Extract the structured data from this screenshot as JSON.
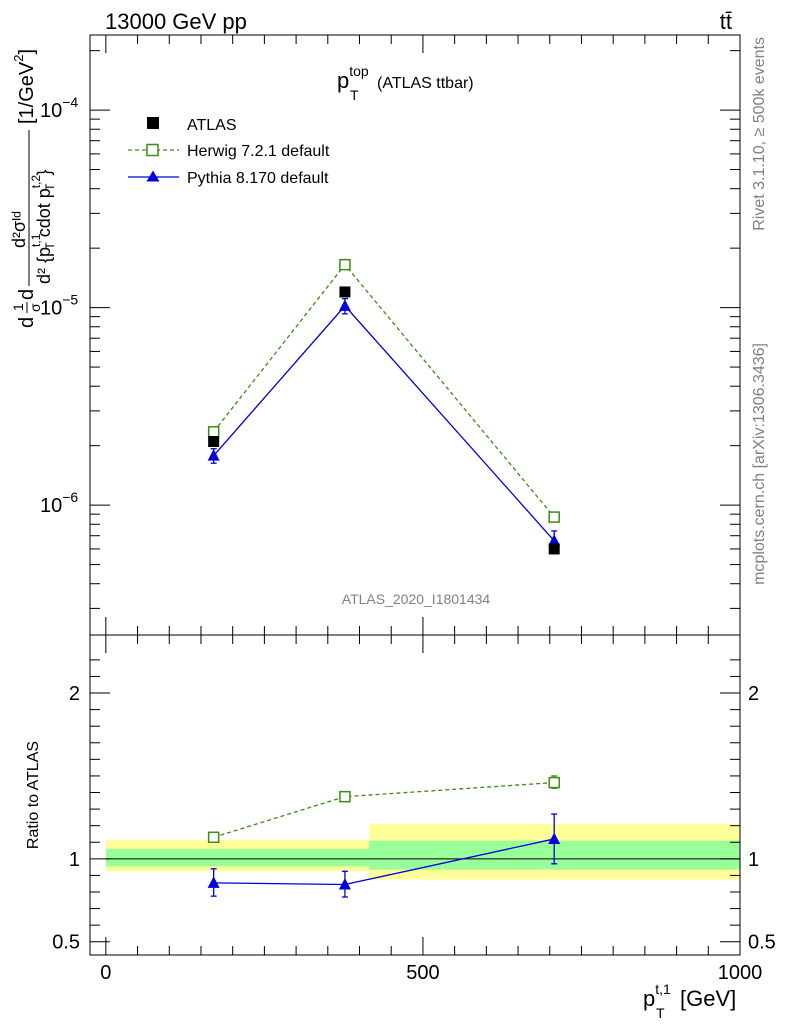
{
  "header": {
    "left": "13000 GeV pp",
    "right": "tt̄"
  },
  "side_labels": {
    "upper": "Rivet 3.1.10, ≥ 500k events",
    "lower": "mcplots.cern.ch [arXiv:1306.3436]"
  },
  "chart_data": [
    {
      "type": "scatter",
      "panel": "main",
      "title": {
        "base": "p",
        "sup": "top",
        "sub": "T",
        "suffix": "(ATLAS ttbar)"
      },
      "analysis_label": "ATLAS_2020_I1801434",
      "ylabel": {
        "lead": "d",
        "frac_num": "1",
        "frac_den": "σ",
        "d": "d",
        "num": "d²σᴵᵈ",
        "den": "d² {p",
        "den_sup1": "t,1",
        "den_sub1": "T",
        "den_mid": " cdot p",
        "den_sup2": "t,2",
        "den_sub2": "T",
        "den_end": "}",
        "unit_pre": "[1/GeV",
        "unit_sup": "2",
        "unit_post": "]"
      },
      "y_scale": "log",
      "ylim": [
        2.2e-07,
        0.00024
      ],
      "xlim": [
        -25,
        1000
      ],
      "y_ticks": [
        {
          "value": 1e-06,
          "base": "10",
          "exp": "−6"
        },
        {
          "value": 1e-05,
          "base": "10",
          "exp": "−5"
        },
        {
          "value": 0.0001,
          "base": "10",
          "exp": "−4"
        }
      ],
      "legend_position": "top-left",
      "series": [
        {
          "name": "ATLAS",
          "marker": "filled-square",
          "color": "#000000",
          "line": "none",
          "x": [
            170,
            377,
            707
          ],
          "y": [
            2.1e-06,
            1.2e-05,
            6e-07
          ]
        },
        {
          "name": "Herwig 7.2.1 default",
          "marker": "open-square",
          "color": "#3a8e10",
          "line": "dashed",
          "x": [
            170,
            377,
            707
          ],
          "y": [
            2.35e-06,
            1.65e-05,
            8.7e-07
          ]
        },
        {
          "name": "Pythia 8.170 default",
          "marker": "filled-triangle",
          "color": "#0000dd",
          "line": "solid",
          "x": [
            170,
            377,
            707
          ],
          "y": [
            1.78e-06,
            1.02e-05,
            6.6e-07
          ],
          "err_lo": [
            1.63e-06,
            9.3e-06,
            5.9e-07
          ],
          "err_hi": [
            1.93e-06,
            1.11e-05,
            7.4e-07
          ]
        }
      ]
    },
    {
      "type": "scatter",
      "panel": "ratio",
      "ylabel": "Ratio to ATLAS",
      "xlabel": {
        "base": "p",
        "sup": "t,1",
        "sub": "T",
        "unit": "[GeV]"
      },
      "xlim": [
        -25,
        1000
      ],
      "ylim": [
        0.42,
        2.35
      ],
      "y_ticks": [
        {
          "value": 0.5,
          "label": "0.5"
        },
        {
          "value": 1,
          "label": "1"
        },
        {
          "value": 2,
          "label": "2"
        }
      ],
      "x_ticks": [
        {
          "value": 0,
          "label": "0"
        },
        {
          "value": 500,
          "label": "500"
        },
        {
          "value": 1000,
          "label": "1000"
        }
      ],
      "bands": [
        {
          "x0": 0,
          "x1": 415,
          "yellow": [
            0.925,
            1.115
          ],
          "green": [
            0.955,
            1.06
          ]
        },
        {
          "x0": 415,
          "x1": 1000,
          "yellow": [
            0.875,
            1.21
          ],
          "green": [
            0.935,
            1.11
          ]
        }
      ],
      "series": [
        {
          "name": "Herwig 7.2.1 default",
          "marker": "open-square",
          "color": "#3a8e10",
          "line": "dashed",
          "x": [
            170,
            377,
            707
          ],
          "y": [
            1.13,
            1.375,
            1.46
          ],
          "err_lo": [
            1.1,
            1.355,
            1.425
          ],
          "err_hi": [
            1.155,
            1.395,
            1.5
          ]
        },
        {
          "name": "Pythia 8.170 default",
          "marker": "filled-triangle",
          "color": "#0000dd",
          "line": "solid",
          "x": [
            170,
            377,
            707
          ],
          "y": [
            0.855,
            0.845,
            1.12
          ],
          "err_lo": [
            0.775,
            0.77,
            0.97
          ],
          "err_hi": [
            0.94,
            0.925,
            1.27
          ]
        }
      ]
    }
  ],
  "colors": {
    "band_yellow": "#ffff99",
    "band_green": "#99ff99"
  }
}
